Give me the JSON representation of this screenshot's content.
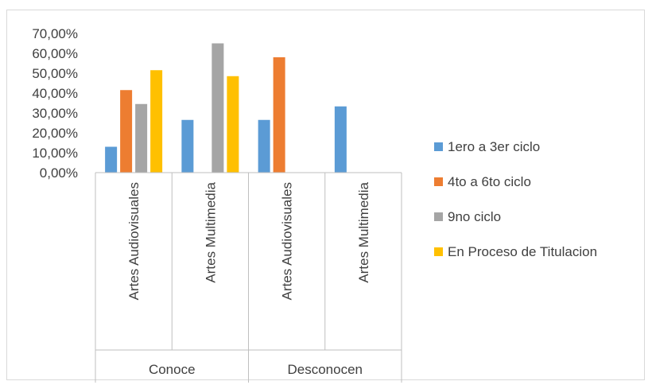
{
  "chart_data": {
    "type": "bar",
    "title": "",
    "xlabel": "",
    "ylabel": "",
    "ylim": [
      0,
      0.7
    ],
    "y_ticks": [
      "0,00%",
      "10,00%",
      "20,00%",
      "30,00%",
      "40,00%",
      "50,00%",
      "60,00%",
      "70,00%"
    ],
    "groups": [
      {
        "label": "Conoce",
        "categories": [
          "Artes Audiovisuales",
          "Artes Multimedia"
        ]
      },
      {
        "label": "Desconocen",
        "categories": [
          "Artes Audiovisuales",
          "Artes Multimedia"
        ]
      }
    ],
    "series": [
      {
        "name": "1ero a 3er ciclo",
        "color": "#5b9bd5",
        "values": [
          0.13,
          0.265,
          0.265,
          0.333
        ]
      },
      {
        "name": "4to a 6to ciclo",
        "color": "#ed7d31",
        "values": [
          0.415,
          0.0,
          0.58,
          0.0
        ]
      },
      {
        "name": "9no ciclo",
        "color": "#a5a5a5",
        "values": [
          0.345,
          0.65,
          0.0,
          0.0
        ]
      },
      {
        "name": "En Proceso de Titulacion",
        "color": "#ffc000",
        "values": [
          0.515,
          0.485,
          0.0,
          0.0
        ]
      }
    ],
    "grid": false,
    "legend_position": "right"
  }
}
